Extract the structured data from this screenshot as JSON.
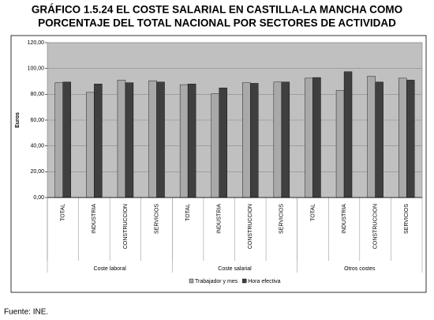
{
  "chart_data": {
    "type": "bar",
    "title": "GRÁFICO 1.5.24 EL COSTE SALARIAL EN CASTILLA-LA MANCHA COMO",
    "subtitle": "PORCENTAJE DEL TOTAL NACIONAL POR SECTORES DE ACTIVIDAD",
    "y_label": "Euros",
    "source": "Fuente: INE.",
    "categories": [
      "TOTAL",
      "INDUSTRIA",
      "CONSTRUCCION",
      "SERVICIOS",
      "TOTAL",
      "INDUSTRIA",
      "CONSTRUCCION",
      "SERVICIOS",
      "TOTAL",
      "INDUSTRIA",
      "CONSTRUCCION",
      "SERVICIOS"
    ],
    "groups": [
      "Coste laboral",
      "Coste salarial",
      "Otros costes"
    ],
    "series": [
      {
        "name": "Trabajador y mes",
        "color": "#a9a9a9",
        "values": [
          89,
          81.5,
          91,
          90.5,
          87.5,
          80.5,
          89,
          89.5,
          92.5,
          83,
          94,
          92.5
        ]
      },
      {
        "name": "Hora efectiva",
        "color": "#3f3f3f",
        "values": [
          89.5,
          88,
          89,
          89.5,
          88,
          85,
          88.5,
          89.5,
          93,
          97.5,
          89.5,
          91
        ]
      }
    ],
    "ylim": [
      0,
      120
    ],
    "yticks": [
      {
        "value": 0,
        "label": "0,00"
      },
      {
        "value": 20,
        "label": "20,00"
      },
      {
        "value": 40,
        "label": "40,00"
      },
      {
        "value": 60,
        "label": "60,00"
      },
      {
        "value": 80,
        "label": "80,00"
      },
      {
        "value": 100,
        "label": "100,00"
      },
      {
        "value": 120,
        "label": "120,00"
      }
    ],
    "grid": true
  }
}
